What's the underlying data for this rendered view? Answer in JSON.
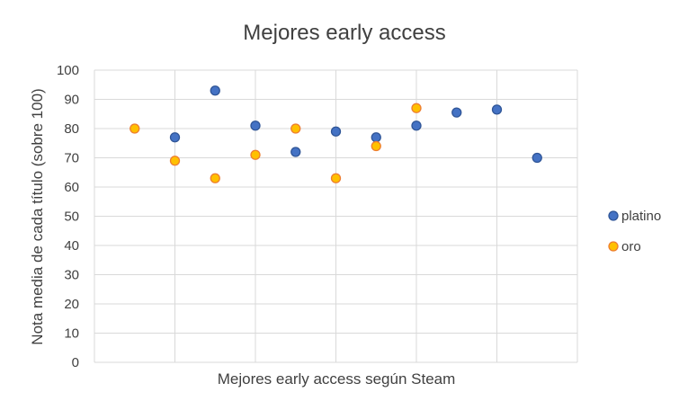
{
  "chart_data": {
    "type": "scatter",
    "title": "Mejores early access",
    "xlabel": "Mejores early access según Steam",
    "ylabel": "Nota media de cada título (sobre 100)",
    "ylim": [
      0,
      100
    ],
    "yticks": [
      "0",
      "10",
      "20",
      "30",
      "40",
      "50",
      "60",
      "70",
      "80",
      "90",
      "100"
    ],
    "xlim": [
      0,
      12
    ],
    "grid": true,
    "legend_position": "right",
    "series": [
      {
        "name": "platino",
        "color": "#4472c4",
        "edge_color": "#2f5597",
        "points": [
          {
            "x": 2,
            "y": 77
          },
          {
            "x": 3,
            "y": 93
          },
          {
            "x": 4,
            "y": 81
          },
          {
            "x": 5,
            "y": 72
          },
          {
            "x": 6,
            "y": 79
          },
          {
            "x": 7,
            "y": 77
          },
          {
            "x": 8,
            "y": 81
          },
          {
            "x": 9,
            "y": 85.5
          },
          {
            "x": 10,
            "y": 86.5
          },
          {
            "x": 11,
            "y": 70
          }
        ]
      },
      {
        "name": "oro",
        "color": "#ffc000",
        "edge_color": "#ed7d31",
        "points": [
          {
            "x": 1,
            "y": 80
          },
          {
            "x": 2,
            "y": 69
          },
          {
            "x": 3,
            "y": 63
          },
          {
            "x": 4,
            "y": 71
          },
          {
            "x": 5,
            "y": 80
          },
          {
            "x": 6,
            "y": 63
          },
          {
            "x": 7,
            "y": 74
          },
          {
            "x": 8,
            "y": 87
          }
        ]
      }
    ]
  }
}
